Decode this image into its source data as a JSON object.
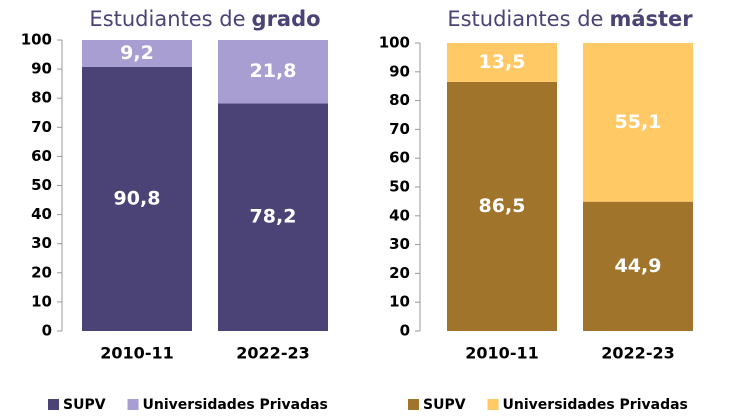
{
  "chart_data": [
    {
      "type": "stacked_bar",
      "title": "Estudiantes de",
      "title_emphasis": "grado",
      "categories": [
        "2010-11",
        "2022-23"
      ],
      "series": [
        {
          "name": "SUPV",
          "color": "#4b4275",
          "values": [
            90.8,
            78.2
          ],
          "value_labels": [
            "90,8",
            "78,2"
          ]
        },
        {
          "name": "Universidades Privadas",
          "color": "#a99ed1",
          "values": [
            9.2,
            21.8
          ],
          "value_labels": [
            "9,2",
            "21,8"
          ]
        }
      ],
      "ylim": [
        0,
        100
      ],
      "yticks": [
        0,
        10,
        20,
        30,
        40,
        50,
        60,
        70,
        80,
        90,
        100
      ],
      "legend": "bottom"
    },
    {
      "type": "stacked_bar",
      "title": "Estudiantes de",
      "title_emphasis": "máster",
      "categories": [
        "2010-11",
        "2022-23"
      ],
      "series": [
        {
          "name": "SUPV",
          "color": "#a0742b",
          "values": [
            86.5,
            44.9
          ],
          "value_labels": [
            "86,5",
            "44,9"
          ]
        },
        {
          "name": "Universidades Privadas",
          "color": "#ffc966",
          "values": [
            13.5,
            55.1
          ],
          "value_labels": [
            "13,5",
            "55,1"
          ]
        }
      ],
      "ylim": [
        0,
        100
      ],
      "yticks": [
        0,
        10,
        20,
        30,
        40,
        50,
        60,
        70,
        80,
        90,
        100
      ],
      "legend": "bottom"
    }
  ]
}
